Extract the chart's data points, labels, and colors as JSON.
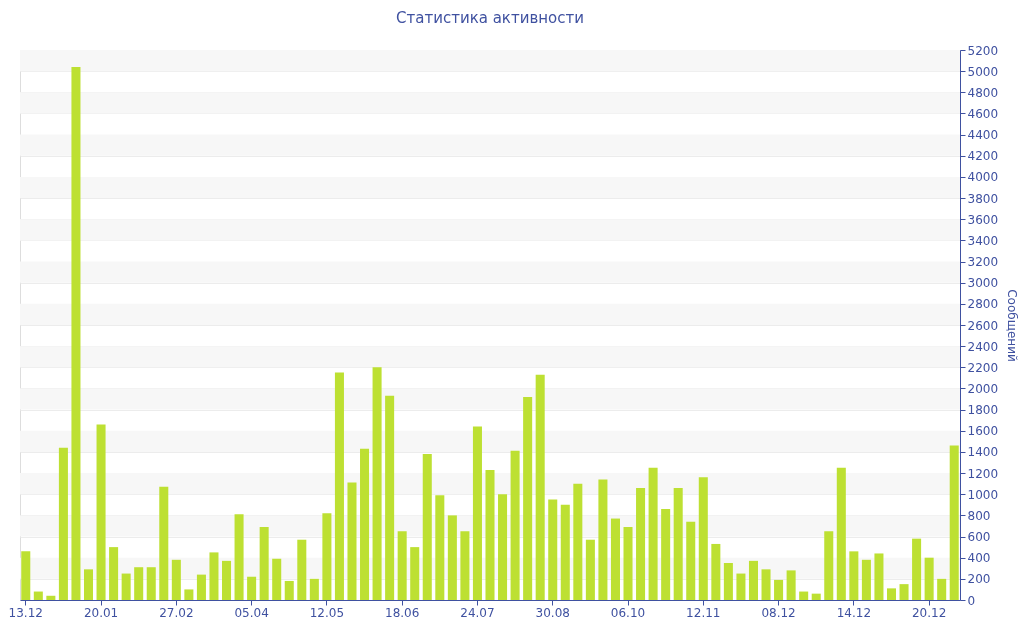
{
  "chart_data": {
    "type": "bar",
    "title": "Статистика активности",
    "ylabel": "Сообщений",
    "categories": [
      "13.12",
      null,
      null,
      null,
      null,
      null,
      "20.01",
      null,
      null,
      null,
      null,
      null,
      "27.02",
      null,
      null,
      null,
      null,
      null,
      "05.04",
      null,
      null,
      null,
      null,
      null,
      "12.05",
      null,
      null,
      null,
      null,
      null,
      "18.06",
      null,
      null,
      null,
      null,
      null,
      "24.07",
      null,
      null,
      null,
      null,
      null,
      "30.08",
      null,
      null,
      null,
      null,
      null,
      "06.10",
      null,
      null,
      null,
      null,
      null,
      "12.11",
      null,
      null,
      null,
      null,
      null,
      "08.12",
      null,
      null,
      null,
      null,
      null,
      "14.12",
      null,
      null,
      null,
      null,
      null,
      "20.12",
      null,
      null
    ],
    "values": [
      460,
      80,
      40,
      1440,
      5040,
      290,
      1660,
      500,
      250,
      310,
      310,
      1070,
      380,
      100,
      240,
      450,
      370,
      810,
      220,
      690,
      390,
      180,
      570,
      200,
      820,
      2150,
      1110,
      1430,
      2200,
      1930,
      650,
      500,
      1380,
      990,
      800,
      650,
      1640,
      1230,
      1000,
      1410,
      1920,
      2130,
      950,
      900,
      1100,
      570,
      1140,
      770,
      690,
      1060,
      1250,
      860,
      1060,
      740,
      1160,
      530,
      350,
      250,
      370,
      290,
      190,
      280,
      80,
      60,
      650,
      1250,
      460,
      380,
      440,
      110,
      150,
      580,
      400,
      200,
      1460
    ],
    "color": "#bde032",
    "ylim": [
      0,
      5200
    ],
    "yticks": [
      0,
      200,
      400,
      600,
      800,
      1000,
      1200,
      1400,
      1600,
      1800,
      2000,
      2200,
      2400,
      2600,
      2800,
      3000,
      3200,
      3400,
      3600,
      3800,
      4000,
      4200,
      4400,
      4600,
      4800,
      5000,
      5200
    ],
    "grid": true
  }
}
